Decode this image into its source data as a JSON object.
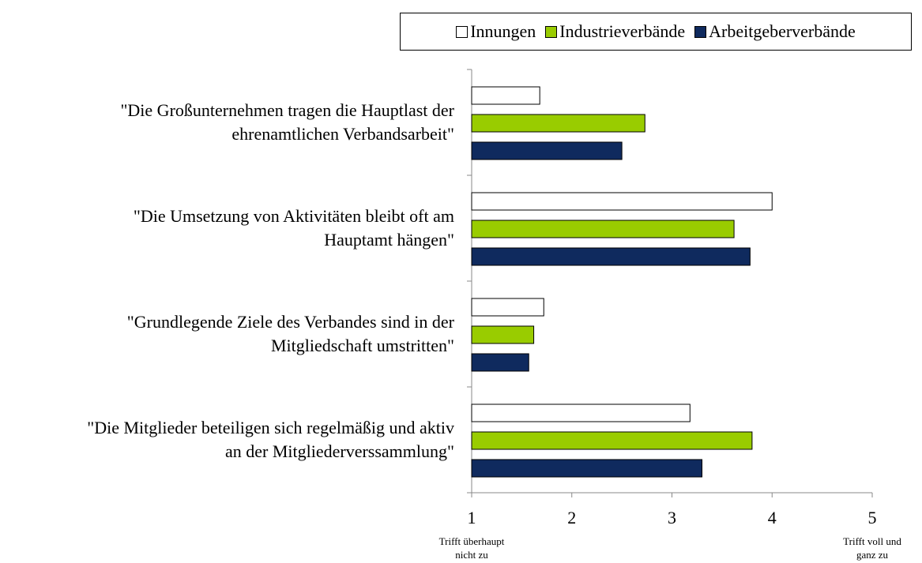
{
  "chart_data": {
    "type": "hbar",
    "categories": [
      "\"Die Großunternehmen tragen die Hauptlast der\nehrenamtlichen Verbandsarbeit\"",
      "\"Die Umsetzung von Aktivitäten bleibt oft am\nHauptamt hängen\"",
      "\"Grundlegende Ziele des Verbandes sind in der\nMitgliedschaft umstritten\"",
      "\"Die Mitglieder beteiligen sich regelmäßig und aktiv\nan der Mitgliederverssammlung\""
    ],
    "series": [
      {
        "name": "Innungen",
        "color": "#ffffff",
        "values": [
          1.68,
          4.0,
          1.72,
          3.18
        ]
      },
      {
        "name": "Industrieverbände",
        "color": "#99cc00",
        "values": [
          2.73,
          3.62,
          1.62,
          3.8
        ]
      },
      {
        "name": "Arbeitgeberverbände",
        "color": "#0f2a5e",
        "values": [
          2.5,
          3.78,
          1.57,
          3.3
        ]
      }
    ],
    "xlim": [
      1,
      5
    ],
    "xticks": [
      1,
      2,
      3,
      4,
      5
    ],
    "annotations": [
      {
        "text": "Trifft überhaupt\nnicht zu",
        "x": 1
      },
      {
        "text": "Trifft voll und\nganz zu",
        "x": 5
      }
    ],
    "legend": "top-right",
    "grid": false
  }
}
